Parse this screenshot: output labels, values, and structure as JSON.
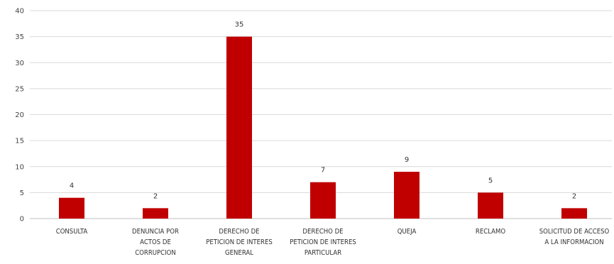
{
  "chart_data": {
    "type": "bar",
    "title": "",
    "xlabel": "",
    "ylabel": "",
    "ylim": [
      0,
      40
    ],
    "yticks": [
      0,
      5,
      10,
      15,
      20,
      25,
      30,
      35,
      40
    ],
    "grid": true,
    "legend": "none",
    "bar_color": "#c00000",
    "categories": [
      [
        "CONSULTA"
      ],
      [
        "DENUNCIA POR",
        "ACTOS DE",
        "CORRUPCION"
      ],
      [
        "DERECHO DE",
        "PETICION DE INTERES",
        "GENERAL"
      ],
      [
        "DERECHO DE",
        "PETICION DE INTERES",
        "PARTICULAR"
      ],
      [
        "QUEJA"
      ],
      [
        "RECLAMO"
      ],
      [
        "SOLICITUD DE ACCESO",
        "A LA INFORMACION"
      ]
    ],
    "values": [
      4,
      2,
      35,
      7,
      9,
      5,
      2
    ],
    "data_labels": [
      "4",
      "2",
      "35",
      "7",
      "9",
      "5",
      "2"
    ]
  }
}
